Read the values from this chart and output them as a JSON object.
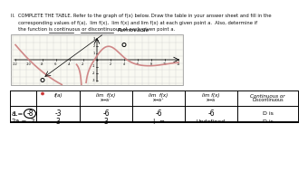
{
  "instruction_lines": [
    "II.  COMPLETE THE TABLE. Refer to the graph of f(x) below. Draw the table in your answer sheet and fill in the",
    "     corresponding values of f(a),  lim f(x),  lim f(x) and lim f(x) at each given point a.  Also, determine if",
    "     the function is continuous or discontinuous at each given point a."
  ],
  "removable_label": "Removable",
  "col_headers": [
    "",
    "f(a)",
    "lim f(x)\nx->a-",
    "lim f(x)\nx->a+",
    "lim f(x)\nx->a",
    "Continuous or\nDiscontinuous"
  ],
  "rows": [
    {
      "num": "1.",
      "point_prefix": "a =",
      "point_val": "-8",
      "fa": "-3",
      "lim_left": "-6",
      "lim_right": "-6",
      "lim": "-6",
      "cont": "D is",
      "circle": true
    },
    {
      "num": "2.",
      "point": "a = -2",
      "fa": "3",
      "lim_left": "3",
      "lim_right": "+ ∞",
      "lim": "Undefined",
      "cont": "D is",
      "circle": false
    }
  ],
  "bg_color": "#ffffff",
  "text_color": "#111111",
  "underline_continuous": [
    44,
    71
  ],
  "underline_discontinuous": [
    79,
    115
  ]
}
